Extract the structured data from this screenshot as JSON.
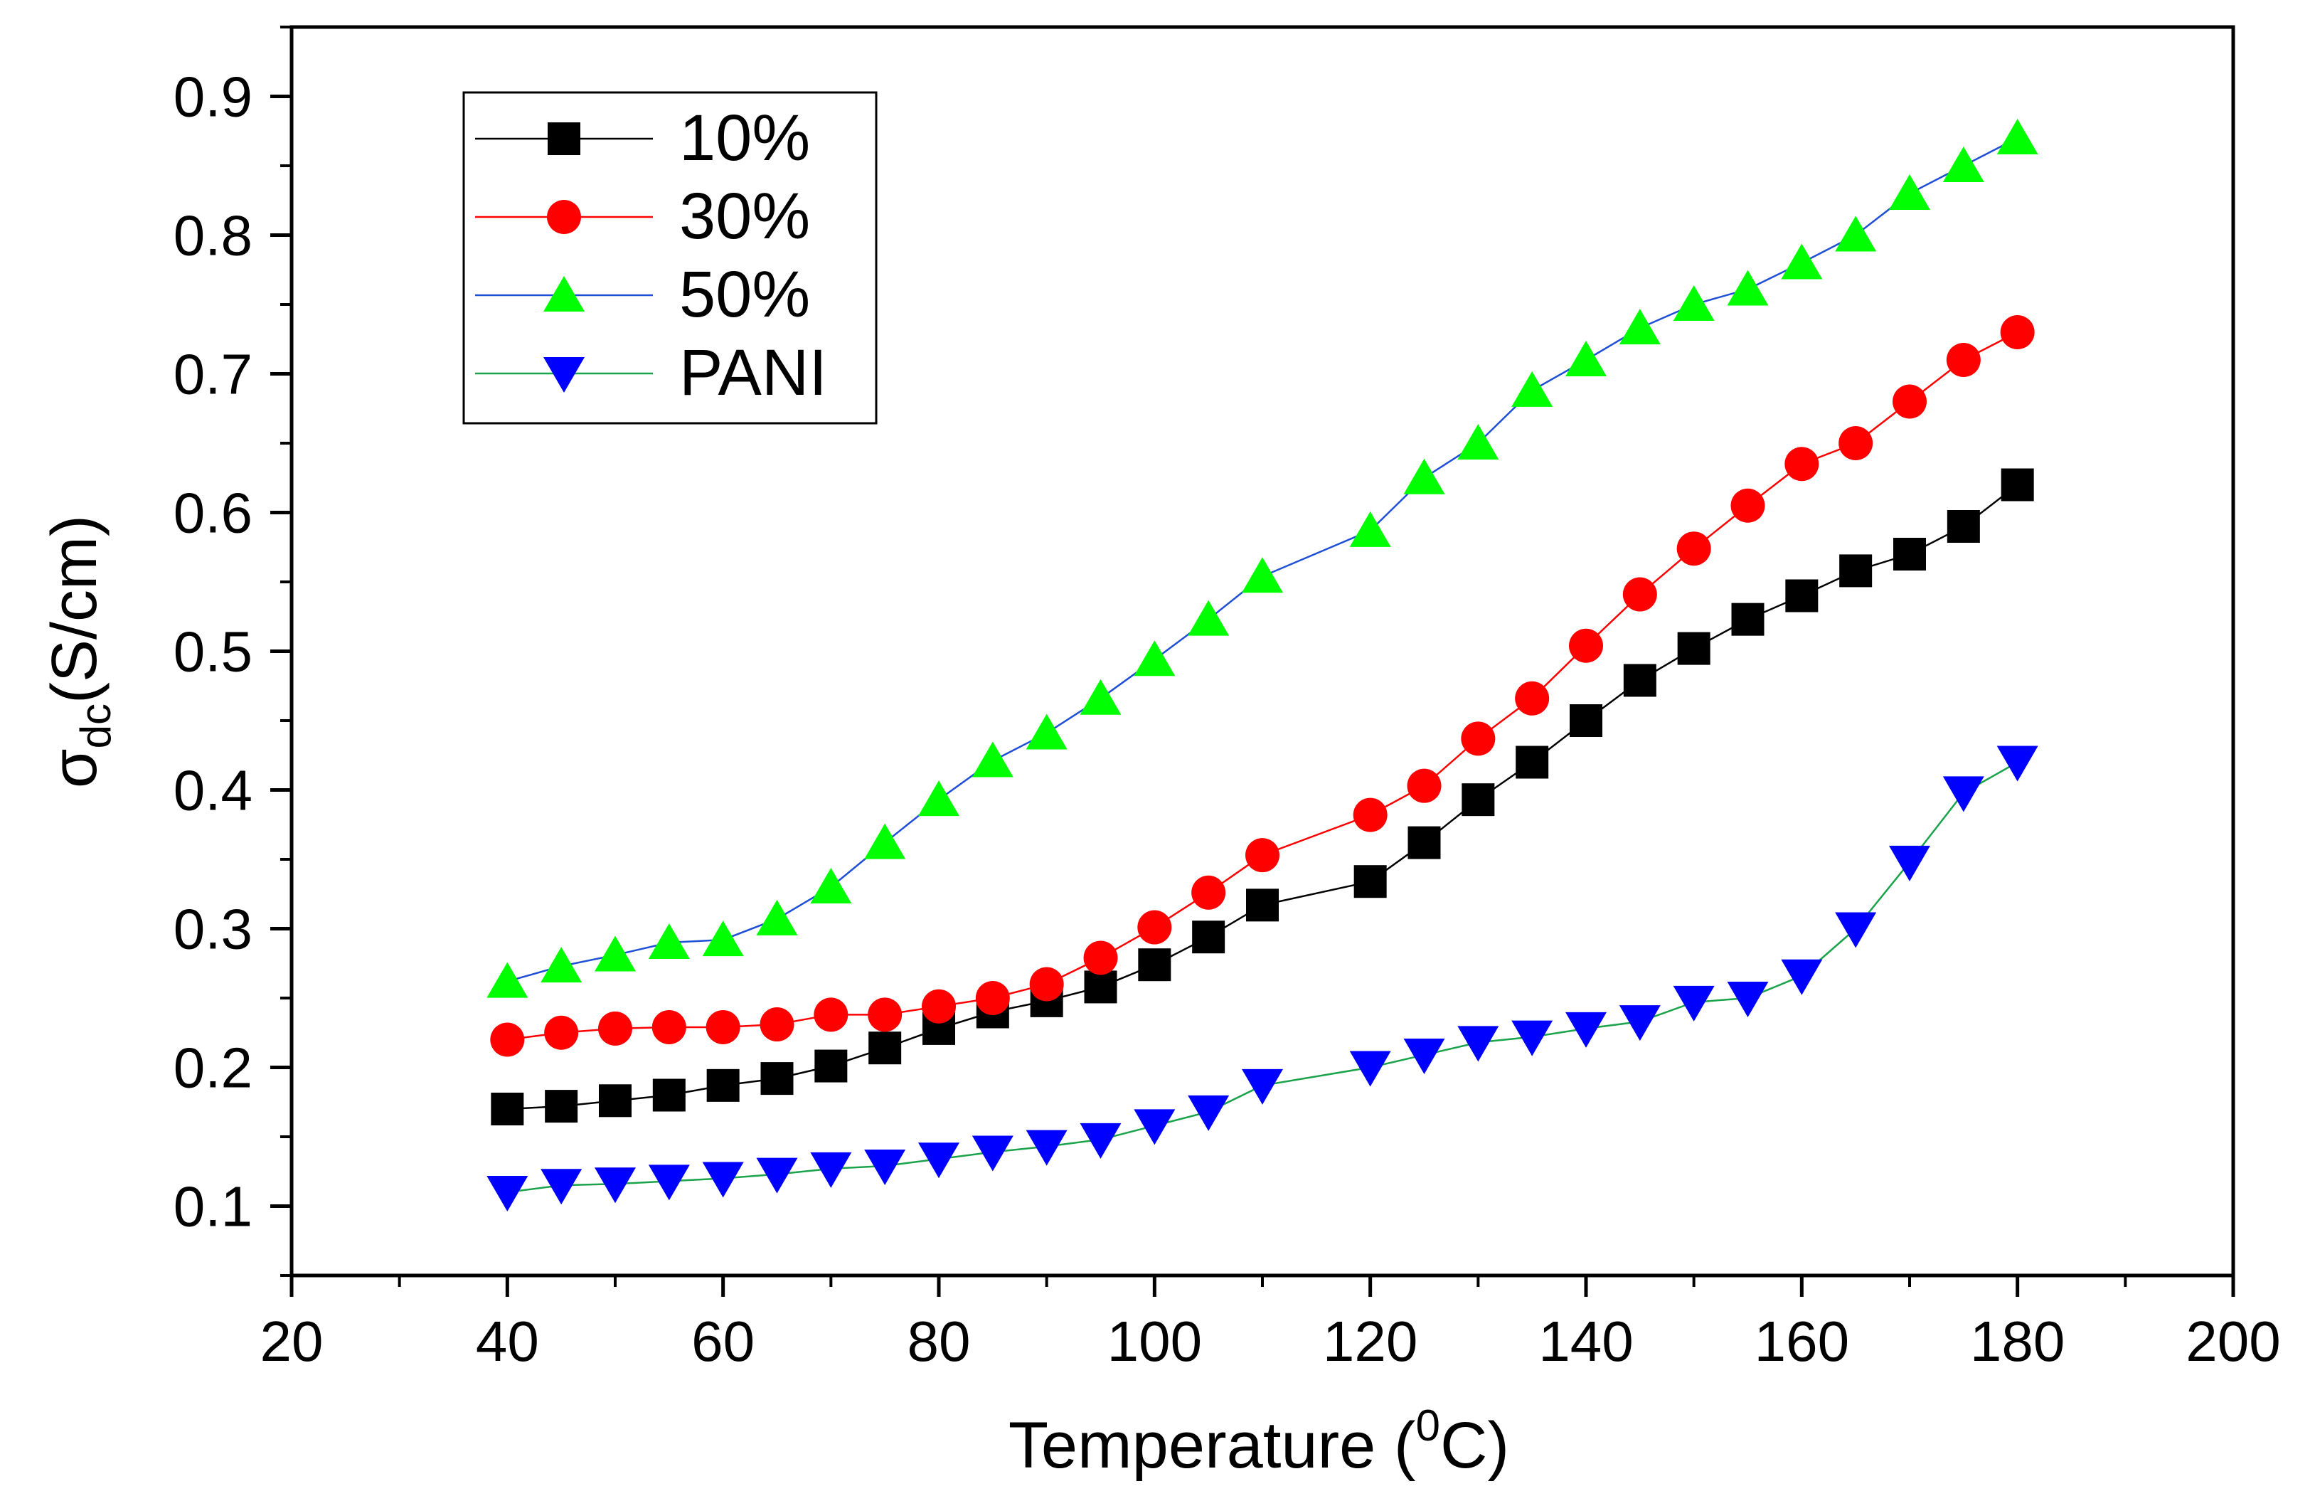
{
  "chart_data": {
    "type": "line",
    "title": "",
    "xlabel": "Temperature (",
    "xlabel_sup": "0",
    "xlabel_tail": "C)",
    "ylabel_symbol": "σ",
    "ylabel_sub": "dc",
    "ylabel_tail": "(S/cm)",
    "xlim": [
      20,
      200
    ],
    "ylim": [
      0.05,
      0.95
    ],
    "xticks": [
      20,
      40,
      60,
      80,
      100,
      120,
      140,
      160,
      180,
      200
    ],
    "xtick_labels": [
      "20",
      "40",
      "60",
      "80",
      "100",
      "120",
      "140",
      "160",
      "180",
      "200"
    ],
    "yticks": [
      0.1,
      0.2,
      0.3,
      0.4,
      0.5,
      0.6,
      0.7,
      0.8,
      0.9
    ],
    "ytick_labels": [
      "0.1",
      "0.2",
      "0.3",
      "0.4",
      "0.5",
      "0.6",
      "0.7",
      "0.8",
      "0.9"
    ],
    "grid": false,
    "legend_position": "top-left",
    "series": [
      {
        "name": "10%",
        "marker": "square",
        "marker_color": "#000000",
        "line_color": "#000000",
        "x": [
          40,
          45,
          50,
          55,
          60,
          65,
          70,
          75,
          80,
          85,
          90,
          95,
          100,
          105,
          110,
          120,
          125,
          130,
          135,
          140,
          145,
          150,
          155,
          160,
          165,
          170,
          175,
          180
        ],
        "y": [
          0.17,
          0.172,
          0.176,
          0.18,
          0.187,
          0.192,
          0.201,
          0.214,
          0.228,
          0.24,
          0.248,
          0.258,
          0.274,
          0.294,
          0.317,
          0.334,
          0.362,
          0.393,
          0.42,
          0.45,
          0.479,
          0.502,
          0.523,
          0.54,
          0.558,
          0.57,
          0.59,
          0.62
        ]
      },
      {
        "name": "30%",
        "marker": "circle",
        "marker_color": "#ff0000",
        "line_color": "#ff0000",
        "x": [
          40,
          45,
          50,
          55,
          60,
          65,
          70,
          75,
          80,
          85,
          90,
          95,
          100,
          105,
          110,
          120,
          125,
          130,
          135,
          140,
          145,
          150,
          155,
          160,
          165,
          170,
          175,
          180
        ],
        "y": [
          0.22,
          0.225,
          0.228,
          0.229,
          0.229,
          0.231,
          0.238,
          0.238,
          0.244,
          0.25,
          0.26,
          0.279,
          0.301,
          0.326,
          0.353,
          0.382,
          0.403,
          0.437,
          0.466,
          0.504,
          0.541,
          0.574,
          0.605,
          0.635,
          0.65,
          0.68,
          0.71,
          0.73
        ]
      },
      {
        "name": "50%",
        "marker": "triangle-up",
        "marker_color": "#00ff00",
        "line_color": "#1f4fd6",
        "x": [
          40,
          45,
          50,
          55,
          60,
          65,
          70,
          75,
          80,
          85,
          90,
          95,
          100,
          105,
          110,
          120,
          125,
          130,
          135,
          140,
          145,
          150,
          155,
          160,
          165,
          170,
          175,
          180
        ],
        "y": [
          0.262,
          0.273,
          0.281,
          0.29,
          0.292,
          0.307,
          0.33,
          0.362,
          0.393,
          0.421,
          0.441,
          0.466,
          0.494,
          0.523,
          0.554,
          0.587,
          0.625,
          0.65,
          0.688,
          0.71,
          0.733,
          0.75,
          0.761,
          0.78,
          0.8,
          0.83,
          0.85,
          0.87
        ]
      },
      {
        "name": "PANI",
        "marker": "triangle-down",
        "marker_color": "#0000ff",
        "line_color": "#1aa34a",
        "x": [
          40,
          45,
          50,
          55,
          60,
          65,
          70,
          75,
          80,
          85,
          90,
          95,
          100,
          105,
          110,
          120,
          125,
          130,
          135,
          140,
          145,
          150,
          155,
          160,
          165,
          170,
          175,
          180
        ],
        "y": [
          0.11,
          0.115,
          0.116,
          0.118,
          0.12,
          0.123,
          0.127,
          0.129,
          0.134,
          0.139,
          0.143,
          0.148,
          0.158,
          0.168,
          0.187,
          0.2,
          0.209,
          0.218,
          0.222,
          0.228,
          0.233,
          0.247,
          0.25,
          0.266,
          0.3,
          0.348,
          0.398,
          0.42
        ]
      }
    ]
  }
}
